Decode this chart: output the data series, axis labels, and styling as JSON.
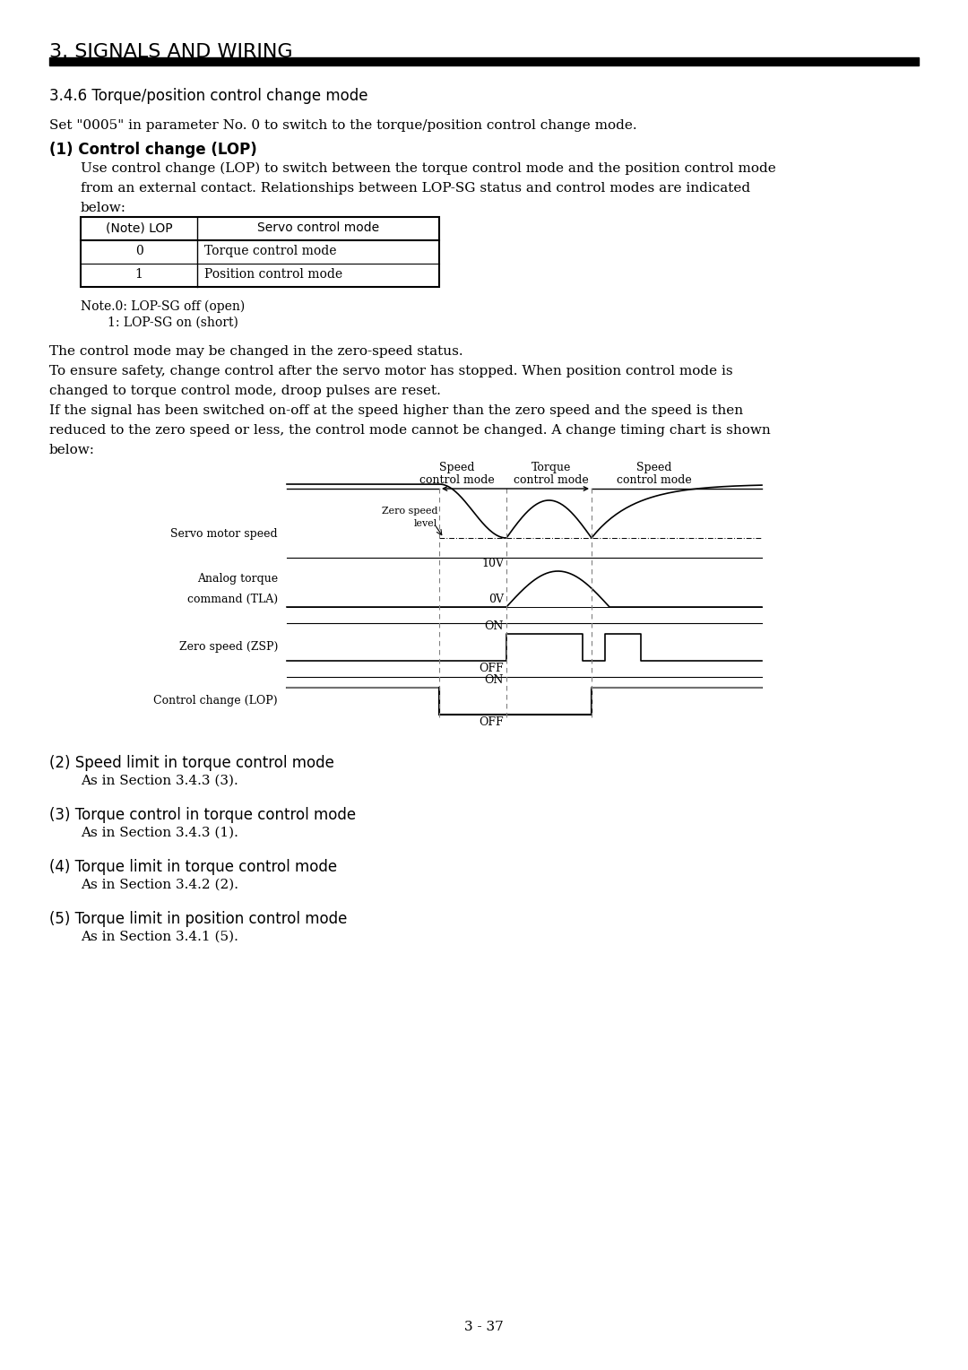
{
  "title": "3. SIGNALS AND WIRING",
  "section": "3.4.6 Torque/position control change mode",
  "bg_color": "#ffffff",
  "text_color": "#000000",
  "page_number": "3 - 37",
  "para1": "Set \"0005\" in parameter No. 0 to switch to the torque/position control change mode.",
  "para1b": "(1) Control change (LOP)",
  "para2a": "Use control change (LOP) to switch between the torque control mode and the position control mode",
  "para2b": "from an external contact. Relationships between LOP-SG status and control modes are indicated",
  "para2c": "below:",
  "table_headers": [
    "(Note) LOP",
    "Servo control mode"
  ],
  "table_rows": [
    [
      "0",
      "Torque control mode"
    ],
    [
      "1",
      "Position control mode"
    ]
  ],
  "note1": "Note.0: LOP-SG off (open)",
  "note2": "1: LOP-SG on (short)",
  "para3": "The control mode may be changed in the zero-speed status.",
  "para4a": "To ensure safety, change control after the servo motor has stopped. When position control mode is",
  "para4b": "changed to torque control mode, droop pulses are reset.",
  "para5a": "If the signal has been switched on-off at the speed higher than the zero speed and the speed is then",
  "para5b": "reduced to the zero speed or less, the control mode cannot be changed. A change timing chart is shown",
  "para5c": "below:",
  "section2": "(2) Speed limit in torque control mode",
  "section2b": "As in Section 3.4.3 (3).",
  "section3": "(3) Torque control in torque control mode",
  "section3b": "As in Section 3.4.3 (1).",
  "section4": "(4) Torque limit in torque control mode",
  "section4b": "As in Section 3.4.2 (2).",
  "section5": "(5) Torque limit in position control mode",
  "section5b": "As in Section 3.4.1 (5)."
}
